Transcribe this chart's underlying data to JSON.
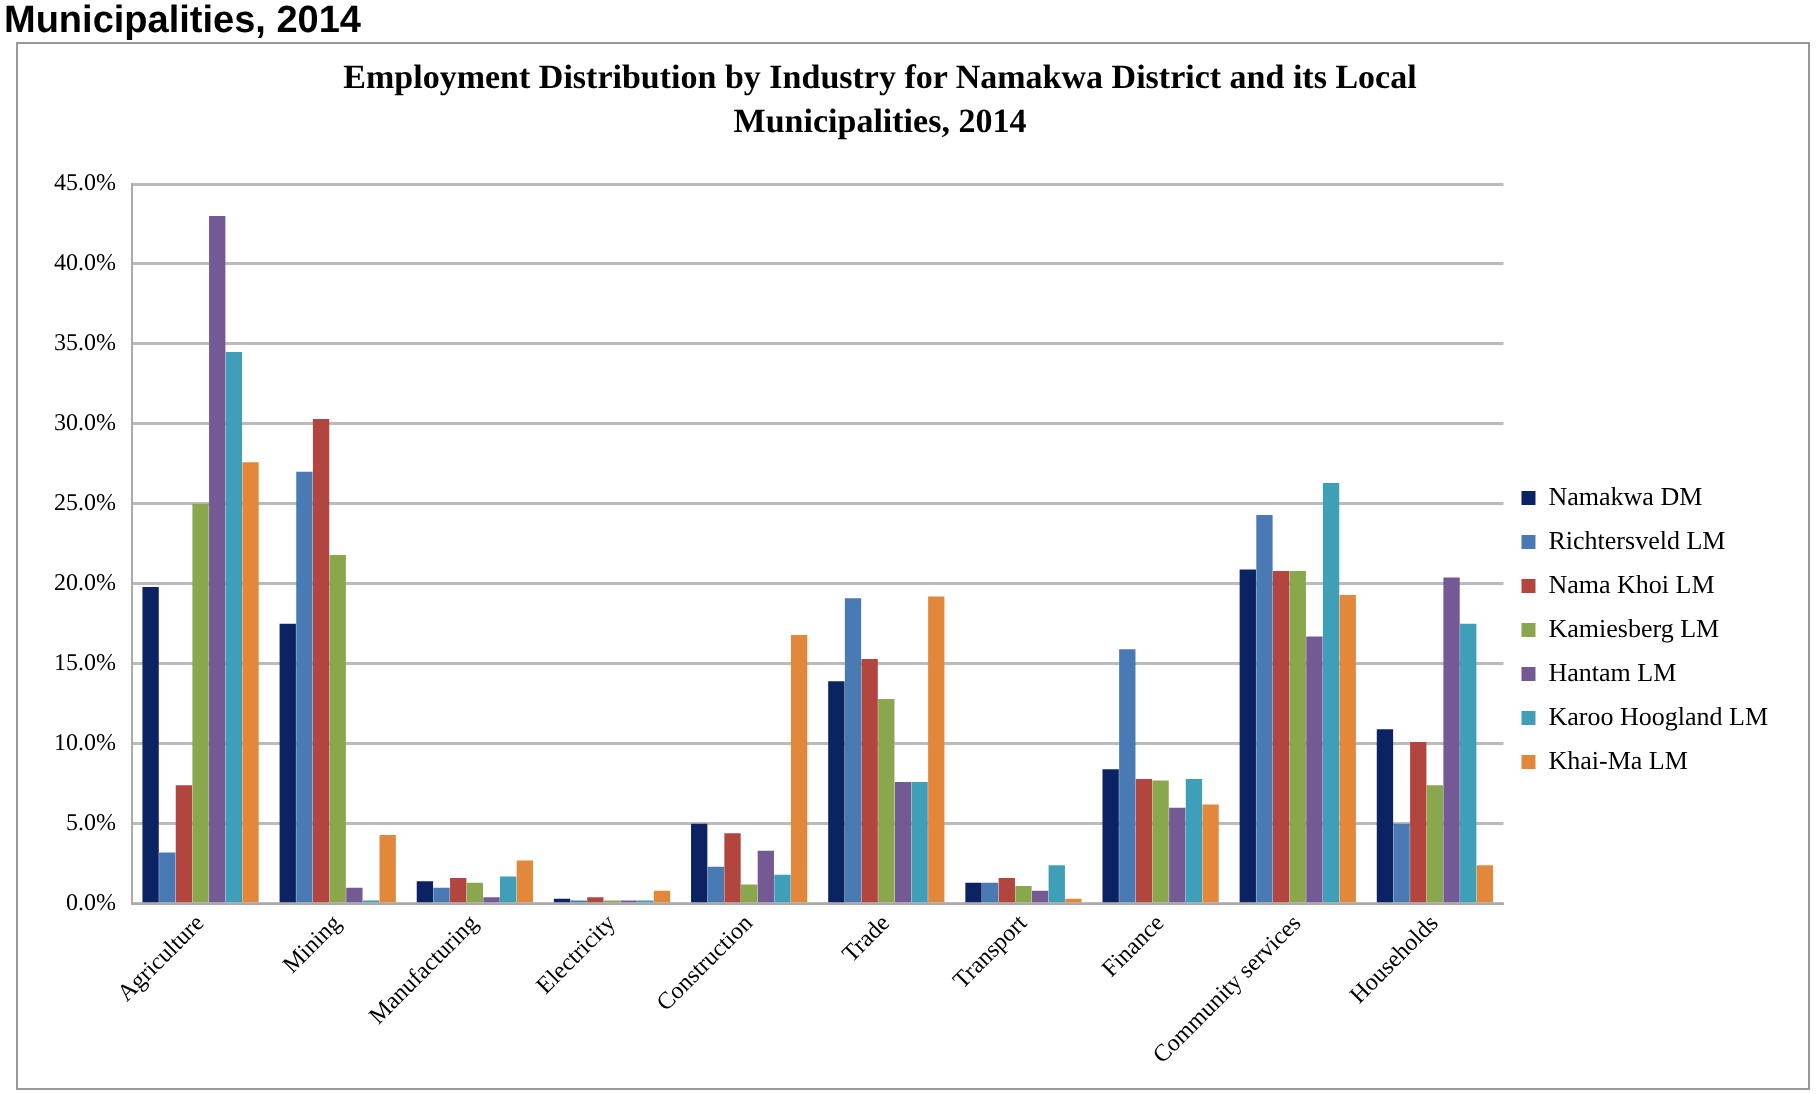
{
  "chart_data": {
    "type": "bar",
    "title": "Employment Distribution by Industry for Namakwa District and its Local Municipalities, 2014",
    "annotations": [
      "Municipalities, 2014"
    ],
    "categories": [
      "Agriculture",
      "Mining",
      "Manufacturing",
      "Electricity",
      "Construction",
      "Trade",
      "Transport",
      "Finance",
      "Community services",
      "Households"
    ],
    "series": [
      {
        "name": "Namakwa DM",
        "color": "#0b2263",
        "values": [
          19.8,
          17.5,
          1.4,
          0.3,
          5.0,
          13.9,
          1.3,
          8.4,
          20.9,
          10.9
        ]
      },
      {
        "name": "Richtersveld LM",
        "color": "#4a7ab4",
        "values": [
          3.2,
          27.0,
          1.0,
          0.2,
          2.3,
          19.1,
          1.3,
          15.9,
          24.3,
          5.0
        ]
      },
      {
        "name": "Nama Khoi LM",
        "color": "#b2463f",
        "values": [
          7.4,
          30.3,
          1.6,
          0.4,
          4.4,
          15.3,
          1.6,
          7.8,
          20.8,
          10.1
        ]
      },
      {
        "name": "Kamiesberg LM",
        "color": "#8ba74e",
        "values": [
          25.0,
          21.8,
          1.3,
          0.2,
          1.2,
          12.8,
          1.1,
          7.7,
          20.8,
          7.4
        ]
      },
      {
        "name": "Hantam LM",
        "color": "#735a94",
        "values": [
          43.0,
          1.0,
          0.4,
          0.2,
          3.3,
          7.6,
          0.8,
          6.0,
          16.7,
          20.4
        ]
      },
      {
        "name": "Karoo Hoogland LM",
        "color": "#3f9fb8",
        "values": [
          34.5,
          0.2,
          1.7,
          0.2,
          1.8,
          7.6,
          2.4,
          7.8,
          26.3,
          17.5
        ]
      },
      {
        "name": "Khai-Ma LM",
        "color": "#e3883a",
        "values": [
          27.6,
          4.3,
          2.7,
          0.8,
          16.8,
          19.2,
          0.3,
          6.2,
          19.3,
          2.4
        ]
      }
    ],
    "ylim": [
      0,
      45
    ],
    "yticks": [
      {
        "value": 0,
        "label": "0.0%"
      },
      {
        "value": 5,
        "label": "5.0%"
      },
      {
        "value": 10,
        "label": "10.0%"
      },
      {
        "value": 15,
        "label": "15.0%"
      },
      {
        "value": 20,
        "label": "20.0%"
      },
      {
        "value": 25,
        "label": "25.0%"
      },
      {
        "value": 30,
        "label": "30.0%"
      },
      {
        "value": 35,
        "label": "35.0%"
      },
      {
        "value": 40,
        "label": "40.0%"
      },
      {
        "value": 45,
        "label": "45.0%"
      }
    ],
    "grid": "y",
    "legend": "right"
  }
}
